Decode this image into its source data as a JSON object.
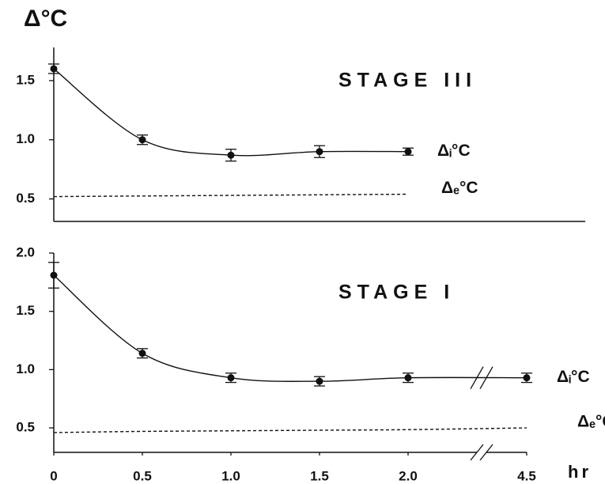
{
  "chart_data": [
    {
      "type": "line",
      "title": "STAGE III",
      "ylabel": "Δ°C",
      "x": [
        0,
        0.5,
        1.0,
        1.5,
        2.0
      ],
      "series": [
        {
          "name": "Δᵢ°C",
          "color": "#111111",
          "style": "solid",
          "markers": true,
          "values": [
            1.6,
            1.0,
            0.87,
            0.9,
            0.9
          ],
          "errors": [
            0.04,
            0.04,
            0.05,
            0.05,
            0.03
          ]
        },
        {
          "name": "Δₑ°C",
          "color": "#111111",
          "style": "dashed",
          "markers": false,
          "values": [
            0.52,
            0.525,
            0.53,
            0.535,
            0.54
          ]
        }
      ],
      "ylim": [
        0.31,
        1.78
      ],
      "yticks": [
        0.5,
        {
          "value": 1,
          "label": "1.0"
        },
        1.5
      ]
    },
    {
      "type": "line",
      "title": "STAGE I",
      "xlabel": "hr",
      "axis_break": true,
      "x": [
        0,
        0.5,
        1.0,
        1.5,
        2.0,
        4.5
      ],
      "series": [
        {
          "name": "Δᵢ°C",
          "color": "#111111",
          "style": "solid",
          "markers": true,
          "values": [
            1.81,
            1.14,
            0.93,
            0.9,
            0.93,
            0.93
          ],
          "errors": [
            0.11,
            0.04,
            0.04,
            0.04,
            0.04,
            0.04
          ]
        },
        {
          "name": "Δₑ°C",
          "color": "#111111",
          "style": "dashed",
          "markers": false,
          "values": [
            0.46,
            0.47,
            0.475,
            0.48,
            0.485,
            0.5
          ]
        }
      ],
      "ylim": [
        0.29,
        2.0
      ],
      "yticks": [
        0.5,
        {
          "value": 1,
          "label": "1.0"
        },
        1.5,
        {
          "value": 2,
          "label": "2.0"
        }
      ],
      "xticks": [
        0,
        0.5,
        {
          "value": 1,
          "label": "1.0"
        },
        1.5,
        {
          "value": 2,
          "label": "2.0"
        },
        4.5
      ]
    }
  ]
}
